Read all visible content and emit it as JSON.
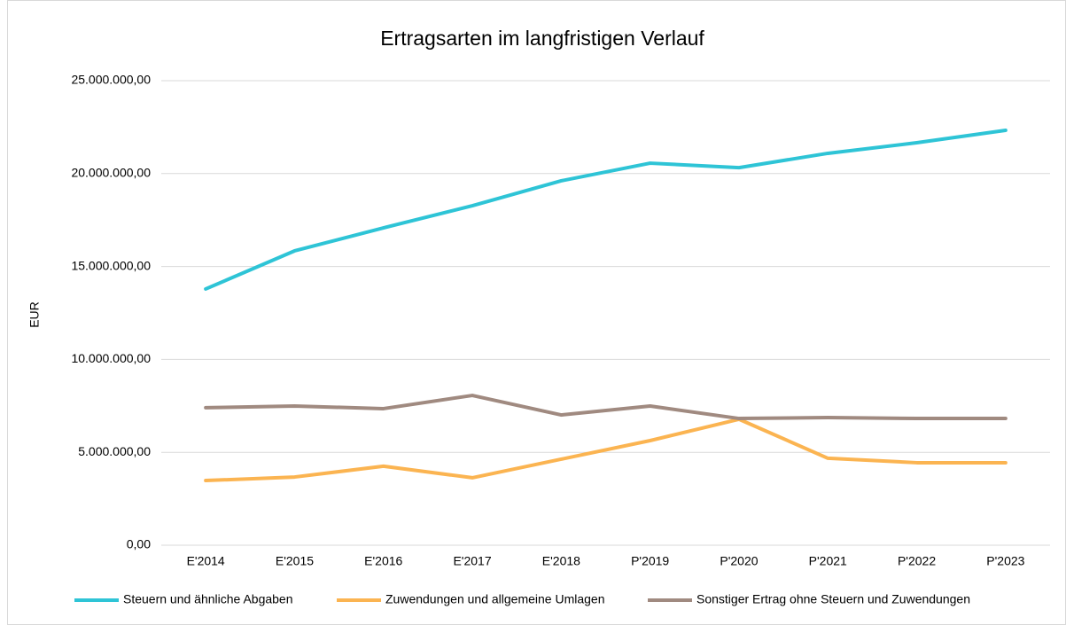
{
  "chart_data": {
    "type": "line",
    "title": "Ertragsarten im langfristigen Verlauf",
    "y_label": "EUR",
    "categories": [
      "E'2014",
      "E'2015",
      "E'2016",
      "E'2017",
      "E'2018",
      "P'2019",
      "P'2020",
      "P'2021",
      "P'2022",
      "P'2023"
    ],
    "series": [
      {
        "name": "Steuern und ähnliche Abgaben",
        "color": "#2ec4d6",
        "values": [
          13790000,
          15840000,
          17080000,
          18270000,
          19610000,
          20560000,
          20320000,
          21090000,
          21660000,
          22330000
        ]
      },
      {
        "name": "Zuwendungen und allgemeine Umlagen",
        "color": "#fbb451",
        "values": [
          3480000,
          3670000,
          4250000,
          3630000,
          4630000,
          5630000,
          6780000,
          4680000,
          4440000,
          4440000
        ]
      },
      {
        "name": "Sonstiger Ertrag ohne Steuern und Zuwendungen",
        "color": "#a08a80",
        "values": [
          7400000,
          7490000,
          7350000,
          8060000,
          7010000,
          7490000,
          6820000,
          6870000,
          6820000,
          6820000
        ]
      }
    ],
    "ylim": [
      0,
      25000000
    ],
    "yticks": [
      {
        "value": 0,
        "label": "0,00"
      },
      {
        "value": 5000000,
        "label": "5.000.000,00"
      },
      {
        "value": 10000000,
        "label": "10.000.000,00"
      },
      {
        "value": 15000000,
        "label": "15.000.000,00"
      },
      {
        "value": 20000000,
        "label": "20.000.000,00"
      },
      {
        "value": 25000000,
        "label": "25.000.000,00"
      }
    ],
    "grid": true,
    "legend": "bottom"
  }
}
